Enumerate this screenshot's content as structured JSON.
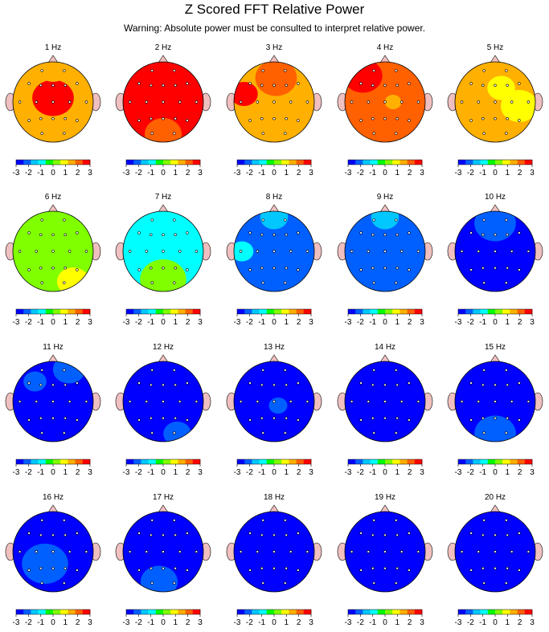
{
  "title": "Z Scored FFT Relative Power",
  "subtitle": "Warning:  Absolute power must be consulted to interpret relative power.",
  "colors": {
    "scale": [
      "#0000ff",
      "#0060ff",
      "#00c8ff",
      "#00ffff",
      "#00ff00",
      "#80ff00",
      "#ffff00",
      "#ffb000",
      "#ff6000",
      "#ff0000"
    ],
    "head_outline": "#000000",
    "ear_nose": "#f0c0c0",
    "electrode": "#ffffff"
  },
  "colorbar_ticks": [
    "-3",
    "-2",
    "-1",
    "0",
    "1",
    "2",
    "3"
  ],
  "chart_data": {
    "type": "heatmap",
    "value_range": [
      -3,
      3
    ],
    "maps": [
      {
        "label": "1 Hz",
        "base": 1.8,
        "blobs": [
          {
            "dx": 0.0,
            "dy": -0.1,
            "r": 0.45,
            "v": 2.9
          },
          {
            "dx": 0.0,
            "dy": -0.85,
            "r": 0.35,
            "v": 1.2
          },
          {
            "dx": 0.25,
            "dy": 0.75,
            "r": 0.28,
            "v": 1.3
          }
        ]
      },
      {
        "label": "2 Hz",
        "base": 2.9,
        "blobs": [
          {
            "dx": 0.0,
            "dy": 0.8,
            "r": 0.4,
            "v": 2.1
          }
        ]
      },
      {
        "label": "3 Hz",
        "base": 1.6,
        "blobs": [
          {
            "dx": -0.75,
            "dy": -0.2,
            "r": 0.3,
            "v": 2.9
          },
          {
            "dx": 0.05,
            "dy": -0.6,
            "r": 0.45,
            "v": 2.2
          },
          {
            "dx": 0.4,
            "dy": 0.45,
            "r": 0.4,
            "v": 1.3
          }
        ]
      },
      {
        "label": "4 Hz",
        "base": 2.2,
        "blobs": [
          {
            "dx": -0.55,
            "dy": -0.65,
            "r": 0.42,
            "v": 2.9
          },
          {
            "dx": 0.2,
            "dy": 0.0,
            "r": 0.18,
            "v": 1.6
          }
        ]
      },
      {
        "label": "5 Hz",
        "base": 1.4,
        "blobs": [
          {
            "dx": 0.15,
            "dy": -0.35,
            "r": 0.3,
            "v": 0.8
          },
          {
            "dx": 0.6,
            "dy": 0.1,
            "r": 0.4,
            "v": 1.0
          }
        ]
      },
      {
        "label": "6 Hz",
        "base": 0.3,
        "blobs": [
          {
            "dx": 0.5,
            "dy": 0.75,
            "r": 0.35,
            "v": 0.8
          }
        ]
      },
      {
        "label": "7 Hz",
        "base": -0.6,
        "blobs": [
          {
            "dx": 0.0,
            "dy": 0.7,
            "r": 0.5,
            "v": 0.1
          }
        ]
      },
      {
        "label": "8 Hz",
        "base": -2.2,
        "blobs": [
          {
            "dx": -0.8,
            "dy": 0.0,
            "r": 0.25,
            "v": -1.2
          },
          {
            "dx": 0.0,
            "dy": -0.85,
            "r": 0.3,
            "v": -1.4
          }
        ]
      },
      {
        "label": "9 Hz",
        "base": -2.4,
        "blobs": [
          {
            "dx": 0.0,
            "dy": -0.85,
            "r": 0.3,
            "v": -1.6
          }
        ]
      },
      {
        "label": "10 Hz",
        "base": -2.9,
        "blobs": [
          {
            "dx": 0.0,
            "dy": -0.7,
            "r": 0.45,
            "v": -2.3
          }
        ]
      },
      {
        "label": "11 Hz",
        "base": -2.9,
        "blobs": [
          {
            "dx": -0.45,
            "dy": -0.5,
            "r": 0.25,
            "v": -2.3
          },
          {
            "dx": 0.4,
            "dy": -0.8,
            "r": 0.35,
            "v": -2.3
          }
        ]
      },
      {
        "label": "12 Hz",
        "base": -3.0,
        "blobs": [
          {
            "dx": 0.35,
            "dy": 0.8,
            "r": 0.3,
            "v": -2.3
          }
        ]
      },
      {
        "label": "13 Hz",
        "base": -3.0,
        "blobs": [
          {
            "dx": 0.1,
            "dy": 0.1,
            "r": 0.2,
            "v": -2.3
          }
        ]
      },
      {
        "label": "14 Hz",
        "base": -3.0,
        "blobs": []
      },
      {
        "label": "15 Hz",
        "base": -3.0,
        "blobs": [
          {
            "dx": 0.0,
            "dy": 0.8,
            "r": 0.45,
            "v": -2.3
          }
        ]
      },
      {
        "label": "16 Hz",
        "base": -2.9,
        "blobs": [
          {
            "dx": -0.2,
            "dy": 0.3,
            "r": 0.5,
            "v": -2.3
          }
        ]
      },
      {
        "label": "17 Hz",
        "base": -3.0,
        "blobs": [
          {
            "dx": -0.1,
            "dy": 0.75,
            "r": 0.4,
            "v": -2.3
          }
        ]
      },
      {
        "label": "18 Hz",
        "base": -3.0,
        "blobs": []
      },
      {
        "label": "19 Hz",
        "base": -3.0,
        "blobs": [
          {
            "dx": 0.3,
            "dy": -0.6,
            "r": 0.2,
            "v": -2.6
          }
        ]
      },
      {
        "label": "20 Hz",
        "base": -3.0,
        "blobs": [
          {
            "dx": 0.6,
            "dy": -0.6,
            "r": 0.2,
            "v": -2.5
          },
          {
            "dx": 0.0,
            "dy": 0.4,
            "r": 0.2,
            "v": -2.5
          }
        ]
      }
    ]
  }
}
